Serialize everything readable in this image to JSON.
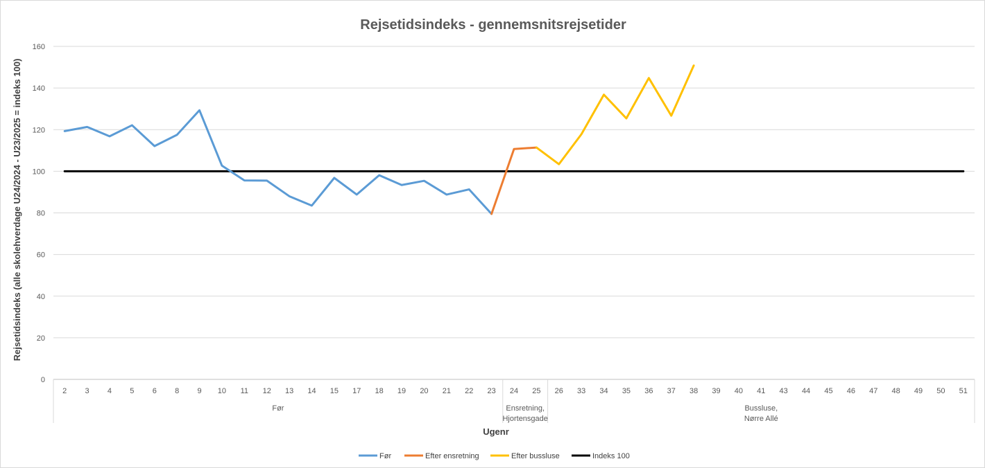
{
  "chart_data": {
    "type": "line",
    "title": "Rejsetidsindeks - gennemsnitsrejsetider",
    "xlabel": "Ugenr",
    "ylabel": "Rejsetidsindeks (alle skolehverdage U24/2024 - U23/2025 = indeks 100)",
    "ylim": [
      0,
      160
    ],
    "yticks": [
      0,
      20,
      40,
      60,
      80,
      100,
      120,
      140,
      160
    ],
    "grid": true,
    "legend_position": "bottom",
    "categories": [
      "2",
      "3",
      "4",
      "5",
      "6",
      "8",
      "9",
      "10",
      "11",
      "12",
      "13",
      "14",
      "15",
      "17",
      "18",
      "19",
      "20",
      "21",
      "22",
      "23",
      "24",
      "25",
      "26",
      "33",
      "34",
      "35",
      "36",
      "37",
      "38",
      "39",
      "40",
      "41",
      "43",
      "44",
      "45",
      "46",
      "47",
      "48",
      "49",
      "50",
      "51"
    ],
    "groups": [
      {
        "label": "Før",
        "start": 0,
        "end": 19
      },
      {
        "label": "Ensretning,\nHjortensgade",
        "start": 20,
        "end": 21
      },
      {
        "label": "Bussluse,\nNørre Allé",
        "start": 22,
        "end": 40
      }
    ],
    "series": [
      {
        "name": "Før",
        "color": "#5B9BD5",
        "values": [
          119.3,
          121.3,
          116.8,
          122.1,
          112.1,
          117.5,
          129.3,
          102.7,
          95.6,
          95.5,
          88.0,
          83.5,
          96.8,
          88.8,
          98.1,
          93.4,
          95.4,
          88.8,
          91.3,
          79.5,
          null,
          null,
          null,
          null,
          null,
          null,
          null,
          null,
          null,
          null,
          null,
          null,
          null,
          null,
          null,
          null,
          null,
          null,
          null,
          null,
          null
        ]
      },
      {
        "name": "Efter ensretning",
        "color": "#ED7D31",
        "values": [
          null,
          null,
          null,
          null,
          null,
          null,
          null,
          null,
          null,
          null,
          null,
          null,
          null,
          null,
          null,
          null,
          null,
          null,
          null,
          79.5,
          110.7,
          111.4,
          null,
          null,
          null,
          null,
          null,
          null,
          null,
          null,
          null,
          null,
          null,
          null,
          null,
          null,
          null,
          null,
          null,
          null,
          null
        ]
      },
      {
        "name": "Efter bussluse",
        "color": "#FFC000",
        "values": [
          null,
          null,
          null,
          null,
          null,
          null,
          null,
          null,
          null,
          null,
          null,
          null,
          null,
          null,
          null,
          null,
          null,
          null,
          null,
          null,
          null,
          111.4,
          103.4,
          117.8,
          136.8,
          125.4,
          144.8,
          126.7,
          150.8,
          null,
          null,
          null,
          null,
          null,
          null,
          null,
          null,
          null,
          null,
          null,
          null
        ]
      },
      {
        "name": "Indeks 100",
        "color": "#000000",
        "values": [
          100,
          100,
          100,
          100,
          100,
          100,
          100,
          100,
          100,
          100,
          100,
          100,
          100,
          100,
          100,
          100,
          100,
          100,
          100,
          100,
          100,
          100,
          100,
          100,
          100,
          100,
          100,
          100,
          100,
          100,
          100,
          100,
          100,
          100,
          100,
          100,
          100,
          100,
          100,
          100,
          100
        ]
      }
    ]
  }
}
